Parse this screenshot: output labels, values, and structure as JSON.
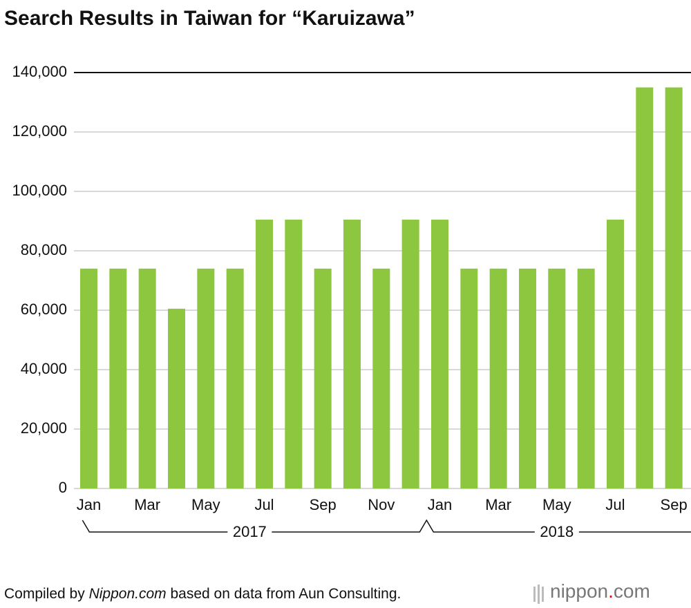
{
  "chart_data": {
    "type": "bar",
    "title": "Search Results in Taiwan for “Karuizawa”",
    "categories": [
      "Jan",
      null,
      "Mar",
      null,
      "May",
      null,
      "Jul",
      null,
      "Sep",
      null,
      "Nov",
      null,
      "Jan",
      null,
      "Mar",
      null,
      "May",
      null,
      "Jul",
      null,
      "Sep"
    ],
    "values": [
      74000,
      74000,
      74000,
      60500,
      74000,
      74000,
      90500,
      90500,
      74000,
      90500,
      74000,
      90500,
      90500,
      74000,
      74000,
      74000,
      74000,
      74000,
      90500,
      135000,
      135000
    ],
    "color": "#8dc63f",
    "ylim": [
      0,
      140000
    ],
    "yticks": [
      0,
      {
        "value": 20000,
        "label": "20,000"
      },
      {
        "value": 40000,
        "label": "40,000"
      },
      {
        "value": 60000,
        "label": "60,000"
      },
      {
        "value": 80000,
        "label": "80,000"
      },
      {
        "value": 100000,
        "label": "100,000"
      },
      {
        "value": 120000,
        "label": "120,000"
      },
      {
        "value": 140000,
        "label": "140,000"
      }
    ],
    "grid": true,
    "year_labels": [
      "2017",
      "2018"
    ]
  },
  "footer": {
    "source_prefix": "Compiled by",
    "source_italic": "Nippon.com",
    "source_suffix": "based on data from Aun Consulting.",
    "logo": [
      "nippon",
      ".",
      "com"
    ]
  }
}
